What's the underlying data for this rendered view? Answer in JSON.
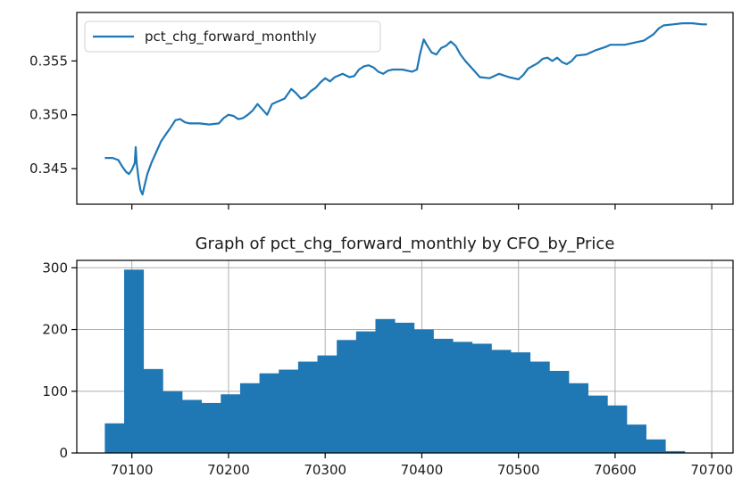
{
  "chart_data": [
    {
      "type": "line",
      "title": "",
      "xlabel": "",
      "ylabel": "",
      "xlim": [
        70043,
        70722
      ],
      "ylim": [
        0.3417,
        0.3595
      ],
      "x_ticks": [
        70100,
        70200,
        70300,
        70400,
        70500,
        70600,
        70700
      ],
      "x_tick_labels_visible": false,
      "y_ticks": [
        0.345,
        0.35,
        0.355
      ],
      "y_tick_labels": [
        "0.345",
        "0.350",
        "0.355"
      ],
      "grid": false,
      "legend": {
        "position": "upper-left",
        "entries": [
          "pct_chg_forward_monthly"
        ]
      },
      "series": [
        {
          "name": "pct_chg_forward_monthly",
          "color": "#1f77b4",
          "points": [
            [
              70072,
              0.346
            ],
            [
              70080,
              0.346
            ],
            [
              70086,
              0.3458
            ],
            [
              70090,
              0.3452
            ],
            [
              70094,
              0.3447
            ],
            [
              70097,
              0.3445
            ],
            [
              70100,
              0.3449
            ],
            [
              70103,
              0.3455
            ],
            [
              70104,
              0.347
            ],
            [
              70105,
              0.3455
            ],
            [
              70107,
              0.344
            ],
            [
              70109,
              0.343
            ],
            [
              70111,
              0.3426
            ],
            [
              70113,
              0.3434
            ],
            [
              70116,
              0.3445
            ],
            [
              70120,
              0.3455
            ],
            [
              70125,
              0.3465
            ],
            [
              70130,
              0.3475
            ],
            [
              70136,
              0.3483
            ],
            [
              70140,
              0.3488
            ],
            [
              70145,
              0.3495
            ],
            [
              70150,
              0.3496
            ],
            [
              70155,
              0.3493
            ],
            [
              70160,
              0.3492
            ],
            [
              70170,
              0.3492
            ],
            [
              70180,
              0.3491
            ],
            [
              70190,
              0.3492
            ],
            [
              70195,
              0.3497
            ],
            [
              70200,
              0.35
            ],
            [
              70205,
              0.3499
            ],
            [
              70210,
              0.3496
            ],
            [
              70215,
              0.3497
            ],
            [
              70220,
              0.35
            ],
            [
              70225,
              0.3504
            ],
            [
              70230,
              0.351
            ],
            [
              70235,
              0.3505
            ],
            [
              70240,
              0.35
            ],
            [
              70245,
              0.351
            ],
            [
              70250,
              0.3512
            ],
            [
              70258,
              0.3515
            ],
            [
              70265,
              0.3524
            ],
            [
              70270,
              0.352
            ],
            [
              70275,
              0.3515
            ],
            [
              70280,
              0.3517
            ],
            [
              70285,
              0.3522
            ],
            [
              70290,
              0.3525
            ],
            [
              70295,
              0.353
            ],
            [
              70300,
              0.3534
            ],
            [
              70305,
              0.3531
            ],
            [
              70310,
              0.3535
            ],
            [
              70318,
              0.3538
            ],
            [
              70325,
              0.3535
            ],
            [
              70330,
              0.3536
            ],
            [
              70335,
              0.3542
            ],
            [
              70340,
              0.3545
            ],
            [
              70345,
              0.3546
            ],
            [
              70350,
              0.3544
            ],
            [
              70355,
              0.354
            ],
            [
              70360,
              0.3538
            ],
            [
              70365,
              0.3541
            ],
            [
              70370,
              0.3542
            ],
            [
              70380,
              0.3542
            ],
            [
              70390,
              0.354
            ],
            [
              70395,
              0.3542
            ],
            [
              70398,
              0.3556
            ],
            [
              70402,
              0.357
            ],
            [
              70405,
              0.3565
            ],
            [
              70410,
              0.3558
            ],
            [
              70415,
              0.3556
            ],
            [
              70420,
              0.3562
            ],
            [
              70425,
              0.3564
            ],
            [
              70430,
              0.3568
            ],
            [
              70435,
              0.3564
            ],
            [
              70440,
              0.3556
            ],
            [
              70445,
              0.355
            ],
            [
              70450,
              0.3545
            ],
            [
              70455,
              0.354
            ],
            [
              70460,
              0.3535
            ],
            [
              70470,
              0.3534
            ],
            [
              70480,
              0.3538
            ],
            [
              70490,
              0.3535
            ],
            [
              70500,
              0.3533
            ],
            [
              70505,
              0.3537
            ],
            [
              70510,
              0.3543
            ],
            [
              70520,
              0.3548
            ],
            [
              70525,
              0.3552
            ],
            [
              70530,
              0.3553
            ],
            [
              70535,
              0.355
            ],
            [
              70540,
              0.3553
            ],
            [
              70545,
              0.3549
            ],
            [
              70550,
              0.3547
            ],
            [
              70555,
              0.355
            ],
            [
              70560,
              0.3555
            ],
            [
              70570,
              0.3556
            ],
            [
              70580,
              0.356
            ],
            [
              70590,
              0.3563
            ],
            [
              70595,
              0.3565
            ],
            [
              70600,
              0.3565
            ],
            [
              70610,
              0.3565
            ],
            [
              70620,
              0.3567
            ],
            [
              70630,
              0.3569
            ],
            [
              70640,
              0.3575
            ],
            [
              70645,
              0.358
            ],
            [
              70650,
              0.3583
            ],
            [
              70660,
              0.3584
            ],
            [
              70670,
              0.3585
            ],
            [
              70680,
              0.3585
            ],
            [
              70690,
              0.3584
            ],
            [
              70695,
              0.3584
            ]
          ]
        }
      ]
    },
    {
      "type": "bar",
      "title": "Graph of pct_chg_forward_monthly by CFO_by_Price",
      "xlabel": "",
      "ylabel": "",
      "xlim": [
        70043,
        70722
      ],
      "ylim": [
        0,
        312
      ],
      "x_ticks": [
        70100,
        70200,
        70300,
        70400,
        70500,
        70600,
        70700
      ],
      "x_tick_labels": [
        "70100",
        "70200",
        "70300",
        "70400",
        "70500",
        "70600",
        "70700"
      ],
      "y_ticks": [
        0,
        100,
        200,
        300
      ],
      "y_tick_labels": [
        "0",
        "100",
        "200",
        "300"
      ],
      "grid": true,
      "bin_start": 70072,
      "bin_width": 20,
      "color": "#1f77b4",
      "values": [
        48,
        297,
        136,
        100,
        86,
        81,
        95,
        113,
        129,
        135,
        148,
        158,
        183,
        197,
        217,
        211,
        200,
        185,
        180,
        177,
        167,
        163,
        148,
        133,
        113,
        93,
        77,
        46,
        22,
        3
      ]
    }
  ]
}
